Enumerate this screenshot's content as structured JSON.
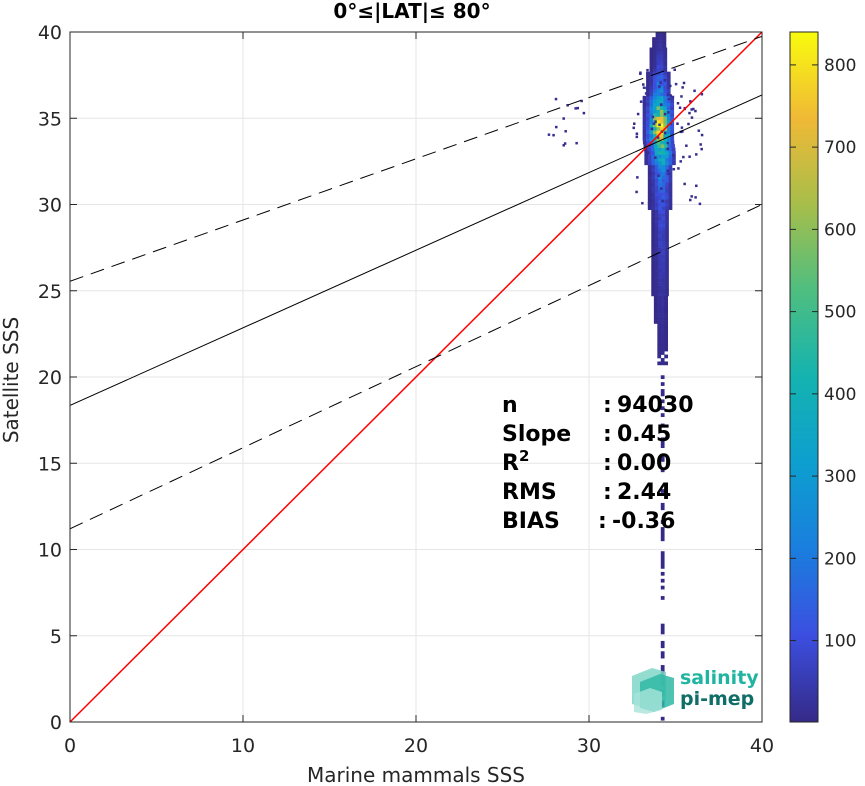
{
  "chart_data": {
    "type": "heatmap",
    "title": "0°≤|LAT|≤ 80°",
    "xlabel": "Marine mammals SSS",
    "ylabel": "Satellite SSS",
    "xlim": [
      0,
      40
    ],
    "ylim": [
      0,
      40
    ],
    "xticks": [
      "0",
      "10",
      "20",
      "30",
      "40"
    ],
    "yticks": [
      "0",
      "5",
      "10",
      "15",
      "20",
      "25",
      "30",
      "35",
      "40"
    ],
    "grid": true,
    "colorbar": {
      "range": [
        1,
        840
      ],
      "ticks": [
        "100",
        "200",
        "300",
        "400",
        "500",
        "600",
        "700",
        "800"
      ],
      "colormap": "parula"
    },
    "lines": [
      {
        "name": "identity",
        "slope": 1,
        "intercept": 0,
        "color": "#ff0000",
        "style": "solid"
      },
      {
        "name": "regression",
        "slope": 0.45,
        "intercept": 18.35,
        "color": "#000000",
        "style": "solid"
      },
      {
        "name": "upper-bound",
        "slope": 0.355,
        "intercept": 25.55,
        "color": "#000000",
        "style": "dashed"
      },
      {
        "name": "lower-bound",
        "slope": 0.47,
        "intercept": 11.2,
        "color": "#000000",
        "style": "dashed"
      }
    ],
    "density_profile": [
      {
        "y": 0.5,
        "x": 34.1,
        "count": 2
      },
      {
        "y": 2,
        "x": 34.1,
        "count": 2
      },
      {
        "y": 4,
        "x": 34.1,
        "count": 3
      },
      {
        "y": 6,
        "x": 34.1,
        "count": 3
      },
      {
        "y": 8,
        "x": 34.1,
        "count": 2
      },
      {
        "y": 10,
        "x": 34.1,
        "count": 2
      },
      {
        "y": 13,
        "x": 34.1,
        "count": 2
      },
      {
        "y": 16,
        "x": 34.1,
        "count": 3
      },
      {
        "y": 18,
        "x": 34.1,
        "count": 4
      },
      {
        "y": 20,
        "x": 34.1,
        "count": 6
      },
      {
        "y": 22,
        "x": 34.1,
        "count": 12
      },
      {
        "y": 24,
        "x": 34.1,
        "count": 25
      },
      {
        "y": 26,
        "x": 34.1,
        "count": 45
      },
      {
        "y": 28,
        "x": 34.1,
        "count": 70
      },
      {
        "y": 30,
        "x": 34.1,
        "count": 110
      },
      {
        "y": 31,
        "x": 34.1,
        "count": 160
      },
      {
        "y": 32,
        "x": 34.1,
        "count": 260
      },
      {
        "y": 33,
        "x": 34.1,
        "count": 420
      },
      {
        "y": 33.6,
        "x": 34.0,
        "count": 620
      },
      {
        "y": 34.2,
        "x": 34.0,
        "count": 800
      },
      {
        "y": 34.8,
        "x": 34.0,
        "count": 700
      },
      {
        "y": 35.4,
        "x": 34.0,
        "count": 520
      },
      {
        "y": 36,
        "x": 34.0,
        "count": 330
      },
      {
        "y": 37,
        "x": 34.0,
        "count": 160
      },
      {
        "y": 38,
        "x": 34.0,
        "count": 70
      },
      {
        "y": 39,
        "x": 34.0,
        "count": 30
      },
      {
        "y": 39.8,
        "x": 34.0,
        "count": 10
      }
    ],
    "stats": [
      {
        "label": "n",
        "sep": ":",
        "value": "94030"
      },
      {
        "label": "Slope",
        "sep": ":",
        "value": "0.45"
      },
      {
        "label": "R",
        "sup": "2",
        "sep": ":",
        "value": "0.00"
      },
      {
        "label": "RMS",
        "sep": ":",
        "value": "2.44"
      },
      {
        "label": "BIAS",
        "sep": ":",
        "value": "-0.36"
      }
    ]
  },
  "logo": {
    "line1": "salinity",
    "line2": "pi-mep",
    "color": "#1fb5a0",
    "color_dark": "#0f6e66"
  }
}
